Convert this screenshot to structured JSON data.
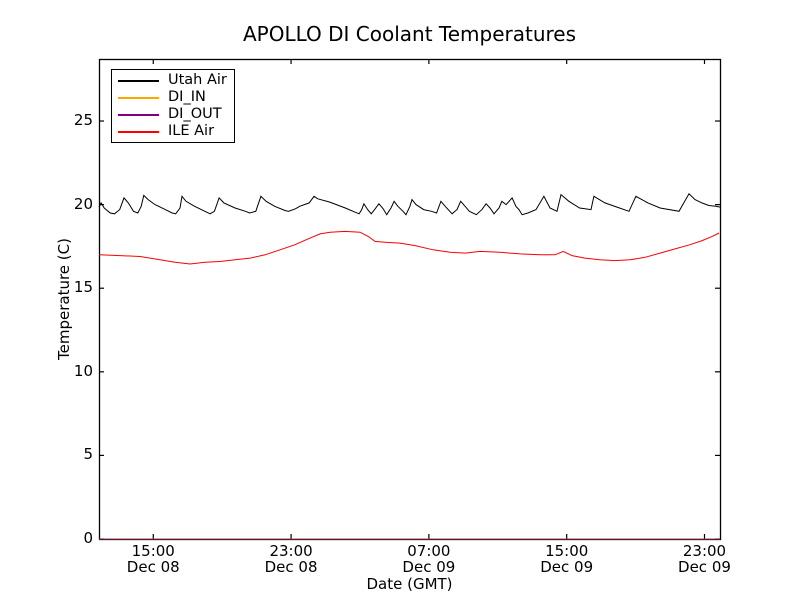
{
  "title": "APOLLO DI Coolant Temperatures",
  "xlabel": "Date (GMT)",
  "ylabel": "Temperature (C)",
  "legend": {
    "position": "upper left"
  },
  "chart_data": {
    "type": "line",
    "title": "APOLLO DI Coolant Temperatures",
    "xlabel": "Date (GMT)",
    "ylabel": "Temperature (C)",
    "grid": false,
    "legend_position": "upper left",
    "ylim": [
      0,
      28.71
    ],
    "yticks": [
      0,
      5,
      10,
      15,
      20,
      25
    ],
    "x_unit": "hours from start of axis (axis spans ~Dec 08 11:50 GMT to ~Dec 09 23:55 GMT)",
    "xlim_hours": [
      0,
      36.05
    ],
    "xticks": [
      {
        "pos_hours": 3.15,
        "time": "15:00",
        "date": "Dec 08"
      },
      {
        "pos_hours": 11.15,
        "time": "23:00",
        "date": "Dec 08"
      },
      {
        "pos_hours": 19.15,
        "time": "07:00",
        "date": "Dec 09"
      },
      {
        "pos_hours": 27.15,
        "time": "15:00",
        "date": "Dec 09"
      },
      {
        "pos_hours": 35.15,
        "time": "23:00",
        "date": "Dec 09"
      }
    ],
    "series": [
      {
        "name": "Utah Air",
        "color": "#000000",
        "points": [
          [
            0,
            19.85
          ],
          [
            0.12,
            20.1
          ],
          [
            0.3,
            19.8
          ],
          [
            0.65,
            19.5
          ],
          [
            0.9,
            19.45
          ],
          [
            1.2,
            19.7
          ],
          [
            1.45,
            20.4
          ],
          [
            1.7,
            20.1
          ],
          [
            2.0,
            19.6
          ],
          [
            2.25,
            19.5
          ],
          [
            2.45,
            19.9
          ],
          [
            2.6,
            20.55
          ],
          [
            2.85,
            20.3
          ],
          [
            3.25,
            20.0
          ],
          [
            3.85,
            19.7
          ],
          [
            4.25,
            19.5
          ],
          [
            4.45,
            19.45
          ],
          [
            4.7,
            19.8
          ],
          [
            4.82,
            20.5
          ],
          [
            5.05,
            20.2
          ],
          [
            5.55,
            19.9
          ],
          [
            6.15,
            19.6
          ],
          [
            6.45,
            19.45
          ],
          [
            6.7,
            19.6
          ],
          [
            6.97,
            20.4
          ],
          [
            7.25,
            20.1
          ],
          [
            7.9,
            19.8
          ],
          [
            8.5,
            19.6
          ],
          [
            8.75,
            19.5
          ],
          [
            9.1,
            19.6
          ],
          [
            9.4,
            20.5
          ],
          [
            9.7,
            20.2
          ],
          [
            10.2,
            19.9
          ],
          [
            10.8,
            19.65
          ],
          [
            11.0,
            19.6
          ],
          [
            11.4,
            19.75
          ],
          [
            11.65,
            19.9
          ],
          [
            12.2,
            20.1
          ],
          [
            12.48,
            20.5
          ],
          [
            12.7,
            20.35
          ],
          [
            13.4,
            20.15
          ],
          [
            14.3,
            19.8
          ],
          [
            14.85,
            19.55
          ],
          [
            15.1,
            19.45
          ],
          [
            15.25,
            19.7
          ],
          [
            15.38,
            20.05
          ],
          [
            15.6,
            19.7
          ],
          [
            15.8,
            19.45
          ],
          [
            16.0,
            19.7
          ],
          [
            16.25,
            20.05
          ],
          [
            16.5,
            19.75
          ],
          [
            16.7,
            19.4
          ],
          [
            16.95,
            19.8
          ],
          [
            17.13,
            20.2
          ],
          [
            17.35,
            19.9
          ],
          [
            17.65,
            19.6
          ],
          [
            17.82,
            19.4
          ],
          [
            18.05,
            19.9
          ],
          [
            18.17,
            20.3
          ],
          [
            18.4,
            20.0
          ],
          [
            18.85,
            19.7
          ],
          [
            19.3,
            19.6
          ],
          [
            19.6,
            19.5
          ],
          [
            19.85,
            20.2
          ],
          [
            20.1,
            19.9
          ],
          [
            20.5,
            19.45
          ],
          [
            20.78,
            19.7
          ],
          [
            21.0,
            20.2
          ],
          [
            21.25,
            19.9
          ],
          [
            21.5,
            19.6
          ],
          [
            21.9,
            19.4
          ],
          [
            22.23,
            19.7
          ],
          [
            22.47,
            20.05
          ],
          [
            22.7,
            19.8
          ],
          [
            22.93,
            19.45
          ],
          [
            23.22,
            19.8
          ],
          [
            23.39,
            20.2
          ],
          [
            23.63,
            20.0
          ],
          [
            23.98,
            20.4
          ],
          [
            24.2,
            19.9
          ],
          [
            24.38,
            19.7
          ],
          [
            24.56,
            19.4
          ],
          [
            24.9,
            19.5
          ],
          [
            25.37,
            19.7
          ],
          [
            25.83,
            20.5
          ],
          [
            26.18,
            19.8
          ],
          [
            26.59,
            19.6
          ],
          [
            26.82,
            20.6
          ],
          [
            27.28,
            20.2
          ],
          [
            27.9,
            19.8
          ],
          [
            28.56,
            19.7
          ],
          [
            28.73,
            20.5
          ],
          [
            29.37,
            20.1
          ],
          [
            30.07,
            19.85
          ],
          [
            30.77,
            19.6
          ],
          [
            31.17,
            20.5
          ],
          [
            31.87,
            20.1
          ],
          [
            32.57,
            19.8
          ],
          [
            33.67,
            19.6
          ],
          [
            34.25,
            20.65
          ],
          [
            34.6,
            20.3
          ],
          [
            35.0,
            20.1
          ],
          [
            35.4,
            19.95
          ],
          [
            35.82,
            19.9
          ],
          [
            36.05,
            19.85
          ]
        ]
      },
      {
        "name": "DI_IN",
        "color": "#ffa500",
        "points": [
          [
            0,
            0
          ],
          [
            36.05,
            0
          ]
        ]
      },
      {
        "name": "DI_OUT",
        "color": "#800080",
        "points": [
          [
            0,
            0
          ],
          [
            36.05,
            0
          ]
        ]
      },
      {
        "name": "ILE Air",
        "color": "#ff0000",
        "points": [
          [
            0,
            17.0
          ],
          [
            1.22,
            16.95
          ],
          [
            2.38,
            16.9
          ],
          [
            3.54,
            16.7
          ],
          [
            4.41,
            16.55
          ],
          [
            5.28,
            16.45
          ],
          [
            6.15,
            16.55
          ],
          [
            7.02,
            16.6
          ],
          [
            7.9,
            16.7
          ],
          [
            8.77,
            16.8
          ],
          [
            9.64,
            17.0
          ],
          [
            10.51,
            17.3
          ],
          [
            11.38,
            17.6
          ],
          [
            12.25,
            18.0
          ],
          [
            12.83,
            18.25
          ],
          [
            13.41,
            18.35
          ],
          [
            14.28,
            18.4
          ],
          [
            15.15,
            18.35
          ],
          [
            15.62,
            18.1
          ],
          [
            16.02,
            17.8
          ],
          [
            16.6,
            17.75
          ],
          [
            17.47,
            17.7
          ],
          [
            18.35,
            17.55
          ],
          [
            19.39,
            17.3
          ],
          [
            20.38,
            17.15
          ],
          [
            21.25,
            17.1
          ],
          [
            22.12,
            17.2
          ],
          [
            23.28,
            17.15
          ],
          [
            24.44,
            17.05
          ],
          [
            25.6,
            17.0
          ],
          [
            26.47,
            17.0
          ],
          [
            26.94,
            17.2
          ],
          [
            27.46,
            16.95
          ],
          [
            28.21,
            16.8
          ],
          [
            29.08,
            16.7
          ],
          [
            29.95,
            16.65
          ],
          [
            30.83,
            16.7
          ],
          [
            31.7,
            16.85
          ],
          [
            32.57,
            17.1
          ],
          [
            33.44,
            17.35
          ],
          [
            34.31,
            17.6
          ],
          [
            35.01,
            17.85
          ],
          [
            35.59,
            18.1
          ],
          [
            35.99,
            18.3
          ]
        ]
      }
    ]
  }
}
